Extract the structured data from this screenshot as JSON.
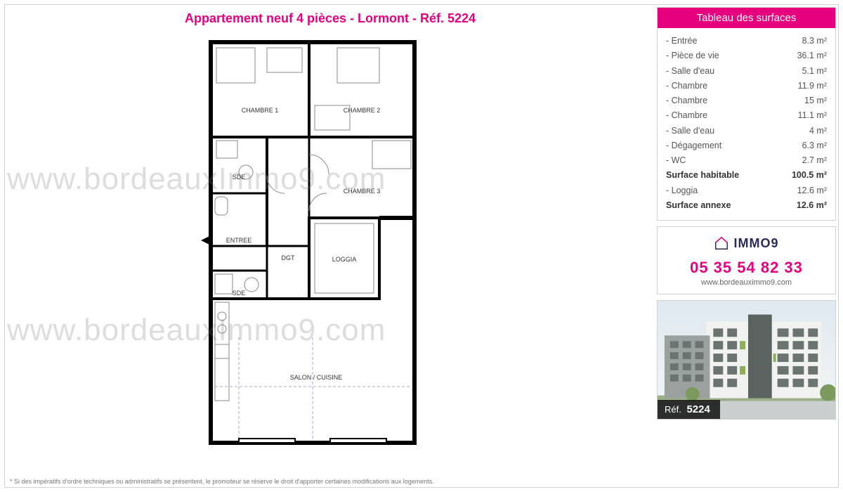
{
  "title": "Appartement neuf 4 pièces - Lormont - Réf. 5224",
  "watermark": "www.bordeauxImmo9.com",
  "accent_color": "#e6007e",
  "surfaces": {
    "header": "Tableau des surfaces",
    "unit": "m²",
    "rows": [
      {
        "label": "Entrée",
        "value": "8.3 m²",
        "bold": false
      },
      {
        "label": "Pièce de vie",
        "value": "36.1 m²",
        "bold": false
      },
      {
        "label": "Salle d'eau",
        "value": "5.1 m²",
        "bold": false
      },
      {
        "label": "Chambre",
        "value": "11.9 m²",
        "bold": false
      },
      {
        "label": "Chambre",
        "value": "15 m²",
        "bold": false
      },
      {
        "label": "Chambre",
        "value": "11.1 m²",
        "bold": false
      },
      {
        "label": "Salle d'eau",
        "value": "4 m²",
        "bold": false
      },
      {
        "label": "Dégagement",
        "value": "6.3 m²",
        "bold": false
      },
      {
        "label": "WC",
        "value": "2.7 m²",
        "bold": false
      },
      {
        "label": "Surface habitable",
        "value": "100.5 m²",
        "bold": true
      },
      {
        "label": "Loggia",
        "value": "12.6 m²",
        "bold": false
      },
      {
        "label": "Surface annexe",
        "value": "12.6 m²",
        "bold": true
      }
    ]
  },
  "contact": {
    "brand": "IMMO9",
    "phone": "05 35 54 82 33",
    "website": "www.bordeauximmo9.com"
  },
  "ref": {
    "prefix": "Réf.",
    "number": "5224"
  },
  "disclaimer": "* Si des impératifs d'ordre techniques ou administratifs se présentent, le promoteur se réserve le droit d'apporter certaines modifications aux logements.",
  "floorplan": {
    "rooms": [
      {
        "key": "chambre1",
        "label": "CHAMBRE 1"
      },
      {
        "key": "chambre2",
        "label": "CHAMBRE 2"
      },
      {
        "key": "chambre3",
        "label": "CHAMBRE 3"
      },
      {
        "key": "sde1",
        "label": "SDE"
      },
      {
        "key": "sde2",
        "label": "SDE"
      },
      {
        "key": "entree",
        "label": "ENTREE"
      },
      {
        "key": "dgt",
        "label": "DGT"
      },
      {
        "key": "loggia",
        "label": "LOGGIA"
      },
      {
        "key": "salon",
        "label": "SALON / CUISINE"
      }
    ]
  }
}
